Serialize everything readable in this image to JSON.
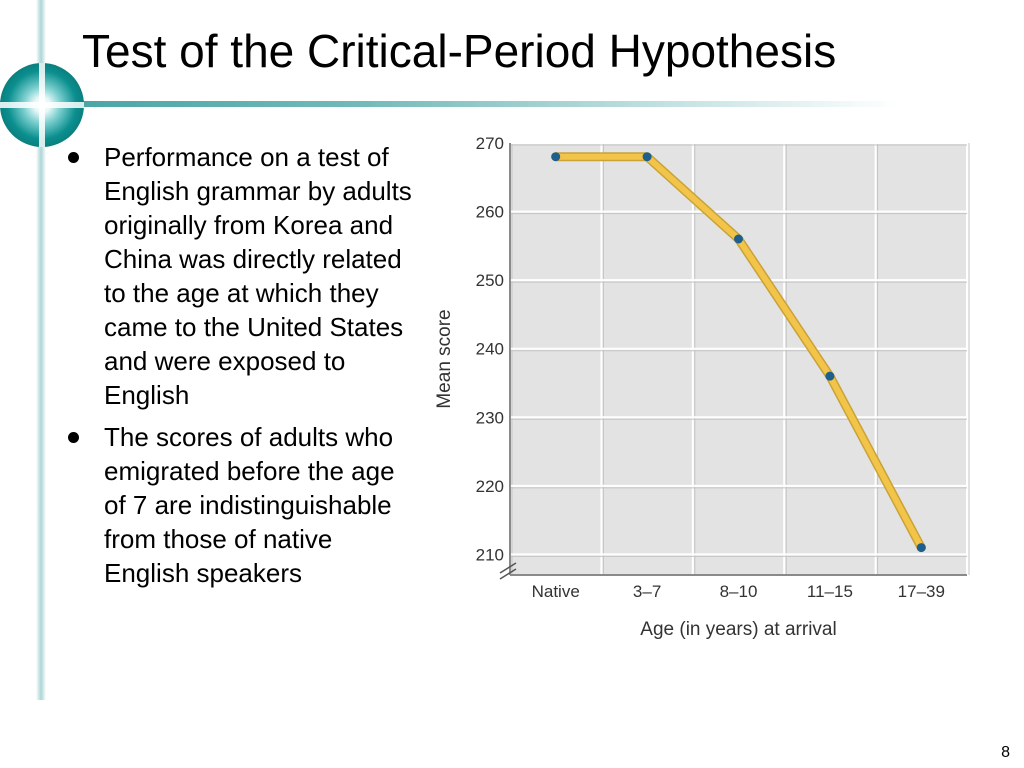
{
  "slide": {
    "title": "Test of the Critical-Period Hypothesis",
    "page_number": "8",
    "bullets": [
      "Performance on a test of English grammar by adults originally from Korea and China was directly related to the age at which they came to the United States and were exposed to English",
      "The scores of adults who emigrated before the age of 7 are indistinguishable from those of native English speakers"
    ]
  },
  "colors": {
    "accent": "#0b8f8f",
    "line": "#f2c44a",
    "point": "#1f5f8b",
    "plot_background": "#e3e3e3",
    "grid": "#ffffff"
  },
  "chart_data": {
    "type": "line",
    "categories": [
      "Native",
      "3–7",
      "8–10",
      "11–15",
      "17–39"
    ],
    "values": [
      268,
      268,
      256,
      236,
      211
    ],
    "ylim": [
      207,
      270
    ],
    "yticks": [
      210,
      220,
      230,
      240,
      250,
      260,
      270
    ],
    "xlabel": "Age (in years) at arrival",
    "ylabel": "Mean score",
    "grid": true,
    "axis_break": true
  }
}
